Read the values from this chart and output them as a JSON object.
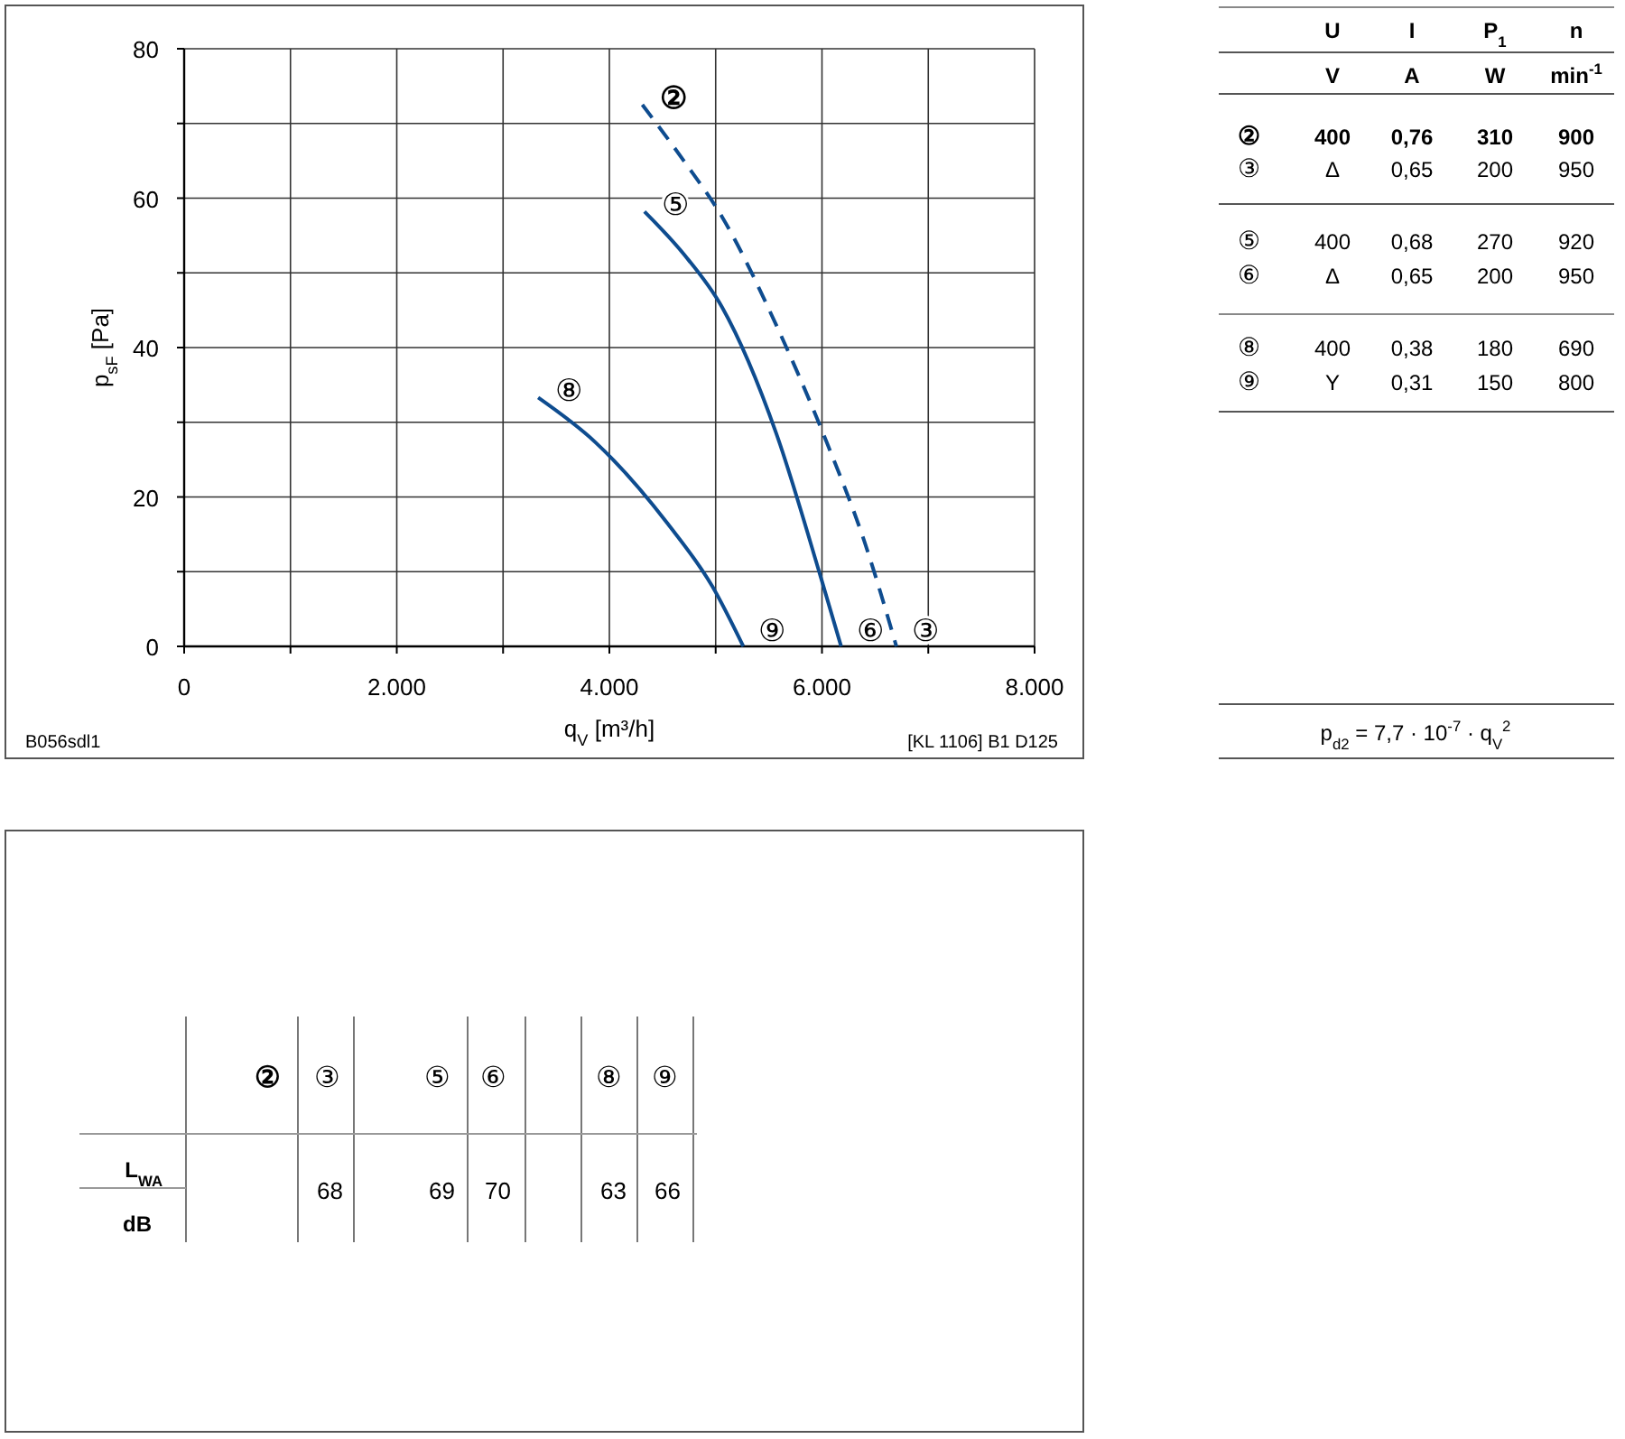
{
  "chart_data": [
    {
      "type": "line",
      "xlabel": "q$_{V}$ [m³/h]",
      "ylabel": "p$_{sF}$ [Pa]",
      "xlim": [
        0,
        8000
      ],
      "ylim": [
        0,
        80
      ],
      "xticks": [
        0,
        {
          "value": 1000,
          "label": null
        },
        {
          "value": 2000,
          "label": "2.000"
        },
        {
          "value": 3000,
          "label": null
        },
        {
          "value": 4000,
          "label": "4.000"
        },
        {
          "value": 5000,
          "label": null
        },
        {
          "value": 6000,
          "label": "6.000"
        },
        {
          "value": 7000,
          "label": null
        },
        {
          "value": 8000,
          "label": "8.000"
        }
      ],
      "yticks": [
        0,
        {
          "value": 10,
          "label": null
        },
        20,
        {
          "value": 30,
          "label": null
        },
        40,
        {
          "value": 50,
          "label": null
        },
        60,
        {
          "value": 70,
          "label": null
        },
        80
      ],
      "grid": true,
      "marker": "none",
      "series": [
        {
          "color": "#0e4c8f",
          "line_style": "dashed",
          "x": [
            4310,
            4700,
            5060,
            5570,
            6045,
            6400,
            6700
          ],
          "values": [
            72.5,
            65,
            57.5,
            43,
            27.3,
            14,
            0
          ]
        },
        {
          "color": "#0e4c8f",
          "line_style": "solid",
          "x": [
            4330,
            4700,
            5060,
            5570,
            5990,
            6180
          ],
          "values": [
            58.2,
            52.5,
            45.4,
            28.5,
            9.2,
            0
          ]
        },
        {
          "color": "#0e4c8f",
          "line_style": "solid",
          "x": [
            3330,
            3870,
            4550,
            4970,
            5260
          ],
          "values": [
            33.3,
            27.3,
            16.4,
            8,
            0
          ]
        }
      ],
      "annotations": [
        "②",
        "⑤",
        "⑧",
        "③",
        "⑥",
        "⑨",
        "B056sdl1",
        "[KL 1106] B1 D125"
      ]
    },
    {
      "type": "other",
      "annotations": [
        "U",
        "I",
        "P$_{1}$",
        "n",
        "V",
        "A",
        "W",
        "min$^{-1}$",
        "②",
        "400",
        "0,76",
        "310",
        "900",
        "③",
        "Δ",
        "0,65",
        "200",
        "950",
        "⑤",
        "400",
        "0,68",
        "270",
        "920",
        "⑥",
        "Δ",
        "0,65",
        "200",
        "950",
        "⑧",
        "400",
        "0,38",
        "180",
        "690",
        "⑨",
        "Y",
        "0,31",
        "150",
        "800",
        "p$_{d2}$ = 7,7 · 10$^{-7}$ · q$_{V}$$^{2}$"
      ]
    },
    {
      "type": "other",
      "annotations": [
        "②",
        "③",
        "⑤",
        "⑥",
        "⑧",
        "⑨",
        "L$_{WA}$",
        "dB",
        "68",
        "69",
        "70",
        "63",
        "66"
      ]
    }
  ]
}
